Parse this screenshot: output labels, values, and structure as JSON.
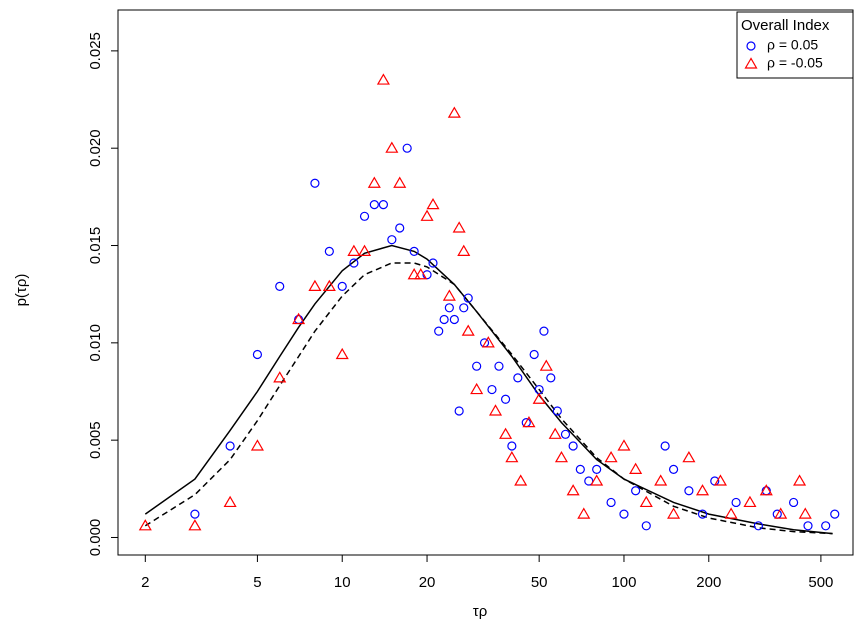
{
  "chart_data": {
    "type": "scatter",
    "xlabel": "τρ",
    "ylabel": "p(τρ)",
    "xscale": "log",
    "xlim": [
      1.6,
      650
    ],
    "ylim": [
      -0.0009,
      0.0271
    ],
    "xticks": [
      2,
      5,
      10,
      20,
      50,
      100,
      200,
      500
    ],
    "yticks": [
      {
        "value": 0,
        "label": "0.000"
      },
      {
        "value": 0.005,
        "label": "0.005"
      },
      {
        "value": 0.01,
        "label": "0.010"
      },
      {
        "value": 0.015,
        "label": "0.015"
      },
      {
        "value": 0.02,
        "label": "0.020"
      },
      {
        "value": 0.025,
        "label": "0.025"
      }
    ],
    "grid": false,
    "legend": {
      "title": "Overall Index",
      "position": "top-right"
    },
    "series": [
      {
        "name": "ρ = 0.05",
        "color": "#0000ff",
        "marker": "circle",
        "x": [
          3,
          4,
          5,
          6,
          7,
          8,
          9,
          10,
          11,
          12,
          13,
          14,
          15,
          16,
          17,
          18,
          20,
          21,
          22,
          23,
          24,
          25,
          26,
          27,
          28,
          30,
          32,
          34,
          36,
          38,
          40,
          42,
          45,
          48,
          50,
          52,
          55,
          58,
          62,
          66,
          70,
          75,
          80,
          90,
          100,
          110,
          120,
          140,
          150,
          170,
          190,
          210,
          250,
          300,
          320,
          350,
          400,
          450,
          520,
          560
        ],
        "values": [
          0.0012,
          0.0047,
          0.0094,
          0.0129,
          0.0112,
          0.0182,
          0.0147,
          0.0129,
          0.0141,
          0.0165,
          0.0171,
          0.0171,
          0.0153,
          0.0159,
          0.02,
          0.0147,
          0.0135,
          0.0141,
          0.0106,
          0.0112,
          0.0118,
          0.0112,
          0.0065,
          0.0118,
          0.0123,
          0.0088,
          0.01,
          0.0076,
          0.0088,
          0.0071,
          0.0047,
          0.0082,
          0.0059,
          0.0094,
          0.0076,
          0.0106,
          0.0082,
          0.0065,
          0.0053,
          0.0047,
          0.0035,
          0.0029,
          0.0035,
          0.0018,
          0.0012,
          0.0024,
          0.0006,
          0.0047,
          0.0035,
          0.0024,
          0.0012,
          0.0029,
          0.0018,
          0.0006,
          0.0024,
          0.0012,
          0.0018,
          0.0006,
          0.0006,
          0.0012
        ]
      },
      {
        "name": "ρ = -0.05",
        "color": "#ff0000",
        "marker": "triangle",
        "x": [
          2,
          3,
          4,
          5,
          6,
          7,
          8,
          9,
          10,
          11,
          12,
          13,
          14,
          15,
          16,
          18,
          19,
          20,
          21,
          24,
          25,
          26,
          27,
          28,
          30,
          33,
          35,
          38,
          40,
          43,
          46,
          50,
          53,
          57,
          60,
          66,
          72,
          80,
          90,
          100,
          110,
          120,
          135,
          150,
          170,
          190,
          220,
          240,
          280,
          320,
          360,
          420,
          440
        ],
        "values": [
          0.0006,
          0.0006,
          0.0018,
          0.0047,
          0.0082,
          0.0112,
          0.0129,
          0.0129,
          0.0094,
          0.0147,
          0.0147,
          0.0182,
          0.0235,
          0.02,
          0.0182,
          0.0135,
          0.0135,
          0.0165,
          0.0171,
          0.0124,
          0.0218,
          0.0159,
          0.0147,
          0.0106,
          0.0076,
          0.01,
          0.0065,
          0.0053,
          0.0041,
          0.0029,
          0.0059,
          0.0071,
          0.0088,
          0.0053,
          0.0041,
          0.0024,
          0.0012,
          0.0029,
          0.0041,
          0.0047,
          0.0035,
          0.0018,
          0.0029,
          0.0012,
          0.0041,
          0.0024,
          0.0029,
          0.0012,
          0.0018,
          0.0024,
          0.0012,
          0.0029,
          0.0012
        ]
      }
    ],
    "lines": [
      {
        "style": "solid",
        "color": "#000000",
        "x": [
          2,
          3,
          4,
          5,
          6,
          7,
          8,
          10,
          12,
          15,
          18,
          20,
          25,
          30,
          40,
          50,
          60,
          80,
          100,
          150,
          200,
          300,
          400,
          550
        ],
        "values": [
          0.0012,
          0.003,
          0.0055,
          0.0075,
          0.0093,
          0.0108,
          0.012,
          0.0137,
          0.0146,
          0.015,
          0.0147,
          0.0143,
          0.013,
          0.0116,
          0.0093,
          0.0073,
          0.0059,
          0.004,
          0.003,
          0.0018,
          0.0012,
          0.0007,
          0.0004,
          0.0002
        ]
      },
      {
        "style": "dashed",
        "color": "#000000",
        "x": [
          2,
          3,
          4,
          5,
          6,
          7,
          8,
          10,
          12,
          15,
          18,
          20,
          25,
          30,
          40,
          50,
          60,
          80,
          100,
          150,
          200,
          300,
          400,
          550
        ],
        "values": [
          0.0006,
          0.0022,
          0.004,
          0.006,
          0.0078,
          0.0093,
          0.0106,
          0.0124,
          0.0135,
          0.0141,
          0.0141,
          0.0139,
          0.013,
          0.0116,
          0.0094,
          0.0076,
          0.0061,
          0.0041,
          0.003,
          0.0016,
          0.001,
          0.0005,
          0.0003,
          0.0002
        ]
      }
    ]
  }
}
